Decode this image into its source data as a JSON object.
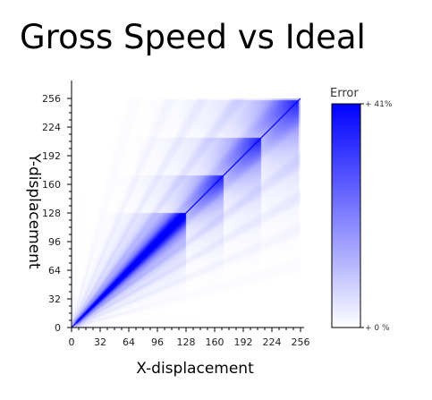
{
  "chart_data": {
    "type": "heatmap",
    "title": "Gross Speed vs Ideal",
    "xlabel": "X-displacement",
    "ylabel": "Y-displacement",
    "xlim": [
      0,
      256
    ],
    "ylim": [
      0,
      256
    ],
    "x_ticks": [
      "0",
      "32",
      "64",
      "96",
      "128",
      "160",
      "192",
      "224",
      "256"
    ],
    "y_ticks": [
      "0",
      "32",
      "64",
      "96",
      "128",
      "160",
      "192",
      "224",
      "256"
    ],
    "color_scale": {
      "title": "Error",
      "min_label": "+ 0 %",
      "max_label": "+ 41%",
      "min_color": "#ffffff",
      "max_color": "#0000ff",
      "min_value": 0,
      "max_value": 41
    },
    "grid": false
  }
}
